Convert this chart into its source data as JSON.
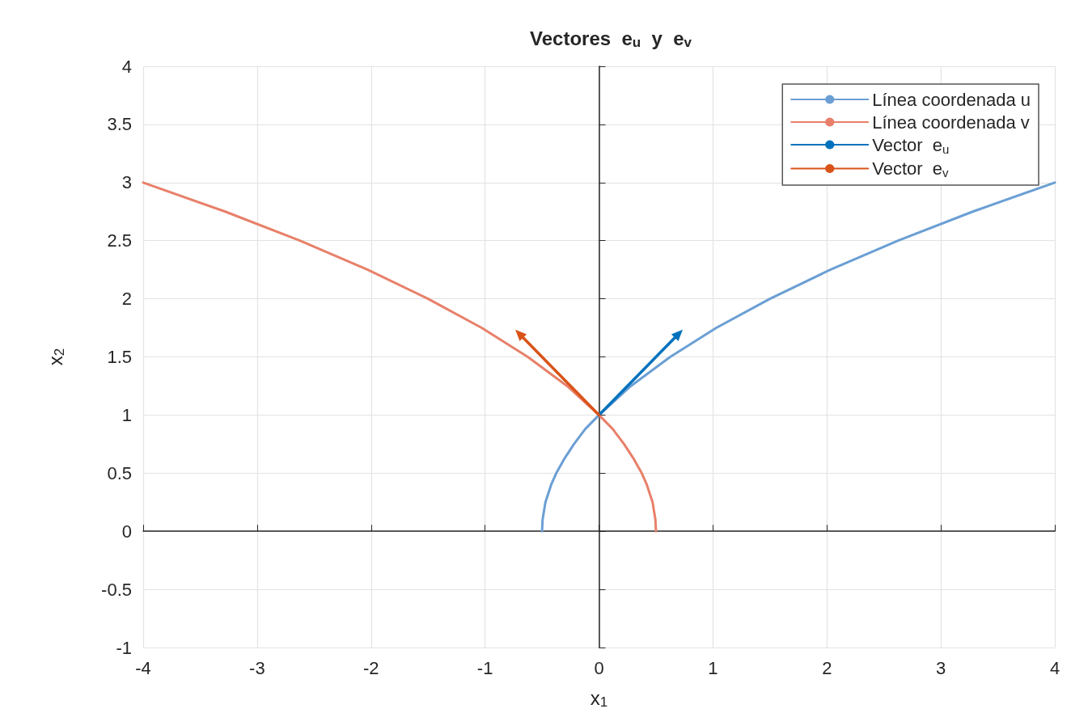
{
  "chart_data": {
    "type": "line",
    "title": "Vectores  e$_{u}$  y  e$_{v}$",
    "xlabel": "x$_{1}$",
    "ylabel": "x$_{2}$",
    "xlim": [
      -4,
      4
    ],
    "xticks": [
      -4,
      -3,
      -2,
      -1,
      0,
      1,
      2,
      3,
      4
    ],
    "ylim": [
      -1,
      4
    ],
    "yticks": [
      -1,
      -0.5,
      0,
      0.5,
      1,
      1.5,
      2,
      2.5,
      3,
      3.5,
      4
    ],
    "grid": true,
    "legend": "top right",
    "series": [
      {
        "name": "Línea coordenada u",
        "color": "#6b9fd4",
        "marker": "none",
        "x": [
          -0.5,
          -0.495,
          -0.47,
          -0.42,
          -0.375,
          -0.3,
          -0.22,
          -0.12,
          0,
          0.28,
          0.625,
          1.03,
          1.5,
          2.03,
          2.625,
          3.28,
          4
        ],
        "values": [
          0,
          0.1,
          0.25,
          0.4,
          0.5,
          0.63,
          0.75,
          0.88,
          1,
          1.25,
          1.5,
          1.75,
          2,
          2.25,
          2.5,
          2.75,
          3
        ]
      },
      {
        "name": "Línea coordenada v",
        "color": "#e8806a",
        "marker": "none",
        "x": [
          0.5,
          0.495,
          0.47,
          0.42,
          0.375,
          0.3,
          0.22,
          0.12,
          0,
          -0.28,
          -0.625,
          -1.03,
          -1.5,
          -2.03,
          -2.625,
          -3.28,
          -4
        ],
        "values": [
          0,
          0.1,
          0.25,
          0.4,
          0.5,
          0.63,
          0.75,
          0.88,
          1,
          1.25,
          1.5,
          1.75,
          2,
          2.25,
          2.5,
          2.75,
          3
        ]
      },
      {
        "name": "Vector  e$_{u}$",
        "color": "#0072bd",
        "marker": "triangle",
        "x": [
          0,
          0.7
        ],
        "values": [
          1,
          1.7
        ]
      },
      {
        "name": "Vector  e$_{v}$",
        "color": "#d95319",
        "marker": "triangle",
        "x": [
          0,
          -0.7
        ],
        "values": [
          1,
          1.7
        ]
      }
    ]
  }
}
